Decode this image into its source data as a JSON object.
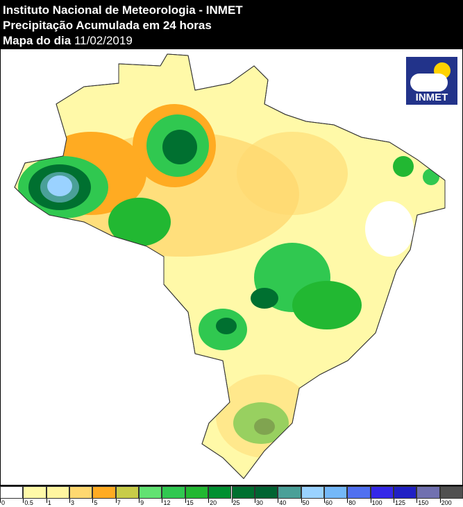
{
  "header": {
    "line1": "Instituto Nacional de Meteorologia - INMET",
    "line2": "Precipitação Acumulada em 24 horas",
    "line3_label": "Mapa do dia",
    "date": "11/02/2019"
  },
  "logo": {
    "text": "INMET"
  },
  "legend": {
    "labels": [
      "0",
      "0.5",
      "1",
      "3",
      "5",
      "7",
      "9",
      "12",
      "15",
      "20",
      "25",
      "30",
      "40",
      "50",
      "60",
      "80",
      "100",
      "125",
      "150",
      "200"
    ],
    "colors": [
      "#ffffff",
      "#fff9a8",
      "#fff5a0",
      "#ffd870",
      "#ffab22",
      "#c8cc48",
      "#62e272",
      "#30c850",
      "#22b832",
      "#009030",
      "#007030",
      "#006432",
      "#4aa098",
      "#9ad2ff",
      "#74b8f8",
      "#5070f0",
      "#3428e8",
      "#2020c4",
      "#7070b0",
      "#505050"
    ]
  }
}
